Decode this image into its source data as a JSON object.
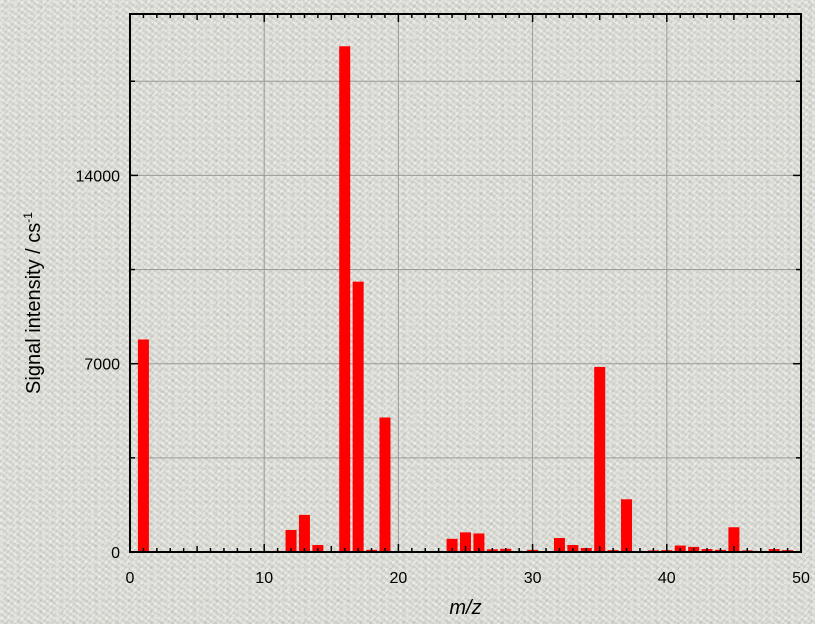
{
  "chart_data": {
    "type": "bar",
    "title": "",
    "xlabel": "m/z",
    "ylabel": "Signal intensity / cs",
    "ylabel_sup": "-1",
    "xlim": [
      0,
      50
    ],
    "ylim": [
      0,
      20000
    ],
    "x_ticks": [
      0,
      10,
      20,
      30,
      40,
      50
    ],
    "y_ticks": [
      0,
      7000,
      14000
    ],
    "y_minor_ticks": [
      3500,
      10500,
      17500
    ],
    "grid": true,
    "legend": "none",
    "bar_color": "#ff0000",
    "x": [
      1,
      11,
      12,
      13,
      14,
      16,
      17,
      18,
      19,
      24,
      25,
      26,
      27,
      28,
      30,
      32,
      33,
      34,
      35,
      36,
      37,
      38,
      39,
      40,
      41,
      42,
      43,
      44,
      45,
      46,
      48,
      49
    ],
    "values": [
      7900,
      40,
      820,
      1380,
      260,
      18800,
      10050,
      80,
      5000,
      490,
      730,
      690,
      100,
      120,
      80,
      520,
      260,
      150,
      6880,
      70,
      1960,
      30,
      60,
      70,
      240,
      190,
      110,
      80,
      920,
      60,
      110,
      70
    ]
  }
}
